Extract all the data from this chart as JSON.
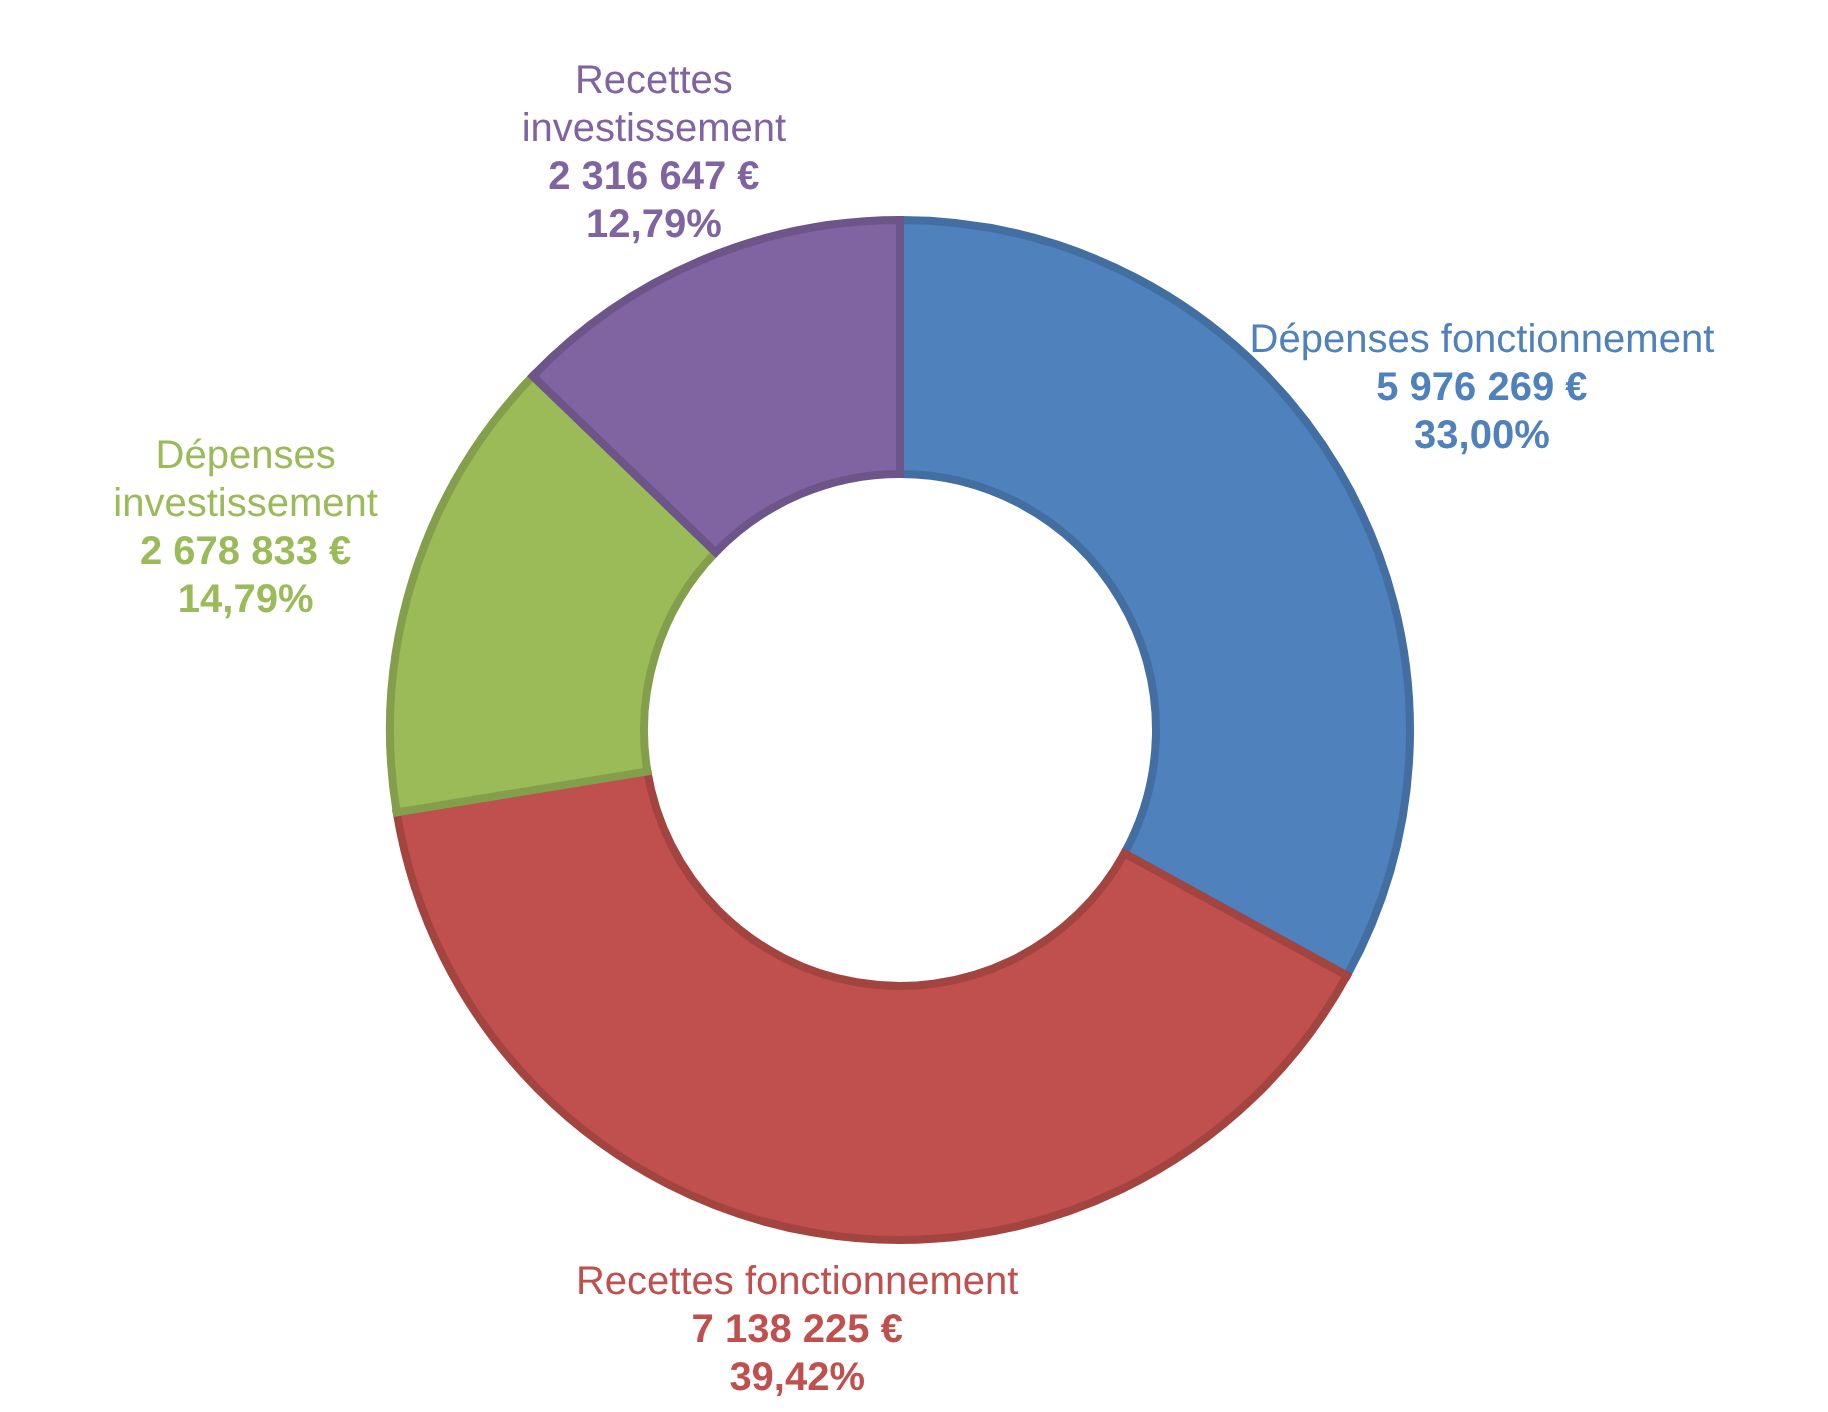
{
  "chart_data": {
    "type": "donut",
    "categories": [
      "Dépenses fonctionnement",
      "Recettes fonctionnement",
      "Dépenses investissement",
      "Recettes investissement"
    ],
    "values": [
      5976269,
      7138225,
      2678833,
      2316647
    ],
    "colors": [
      "#4f81bd",
      "#c0504d",
      "#9bbb59",
      "#8064a2"
    ],
    "value_labels": [
      "5 976 269 €\n33,00%",
      "7 138 225 €\n39,42%",
      "2 678 833 €\n14,79%",
      "2 316 647 €\n12,79%"
    ]
  }
}
